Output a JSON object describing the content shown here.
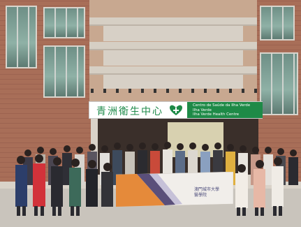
{
  "photo": {
    "description_free": true,
    "colors": {
      "brick": "#a86e58",
      "sign_green": "#1e8a47",
      "banner_orange": "#e58a3a"
    }
  },
  "signboard": {
    "chinese_name": "青洲衛生中心",
    "portuguese_line1": "Centro de Saúde da Ilha Verde",
    "portuguese_line2": "Ilha Verde",
    "english_line": "Ilha Verde Health Centre"
  },
  "banner": {
    "line1": "澳門城市大學",
    "line2": "醫學院"
  }
}
